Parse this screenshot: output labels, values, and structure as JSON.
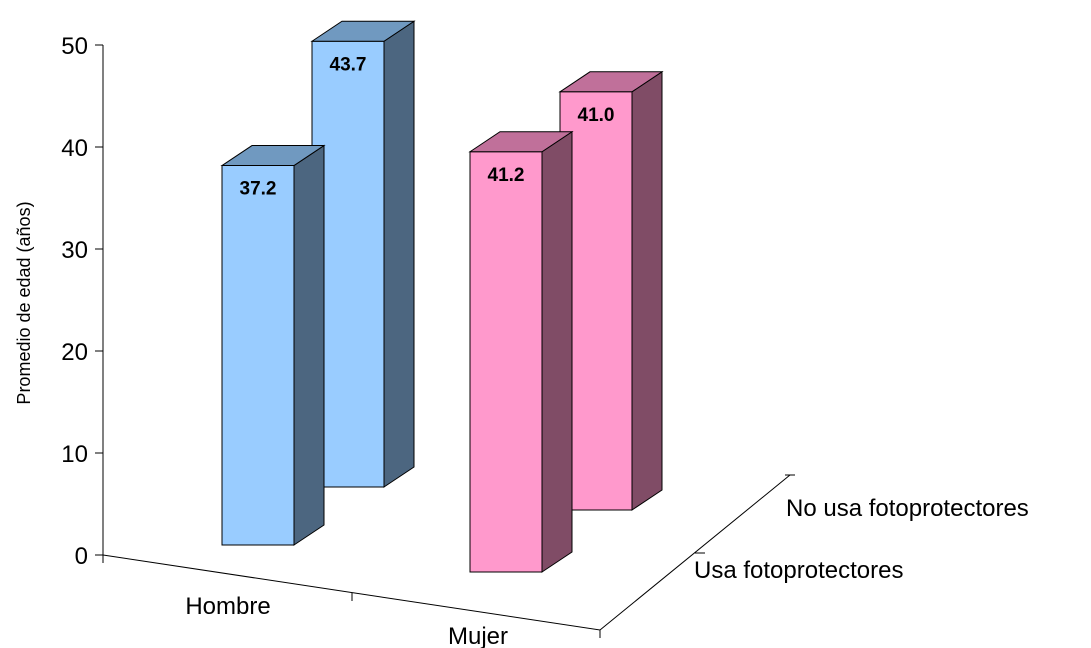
{
  "chart_data": {
    "type": "bar",
    "categories": [
      "Hombre",
      "Mujer"
    ],
    "series": [
      {
        "name": "Usa fotoprotectores",
        "values": [
          37.2,
          41.2
        ],
        "labels": [
          "37.2",
          "41.2"
        ]
      },
      {
        "name": "No usa fotoprotectores",
        "values": [
          43.7,
          41.0
        ],
        "labels": [
          "43.7",
          "41.0"
        ]
      }
    ],
    "ylabel": "Promedio de edad (años)",
    "ylim": [
      0,
      50
    ],
    "yticks": [
      "0",
      "10",
      "20",
      "30",
      "40",
      "50"
    ],
    "grid": false,
    "colors": {
      "Hombre": {
        "front": "#99ccff",
        "side": "#4c6680",
        "top": "#7099c0"
      },
      "Mujer": {
        "front": "#ff99cc",
        "side": "#804c66",
        "top": "#c0709a"
      }
    }
  }
}
